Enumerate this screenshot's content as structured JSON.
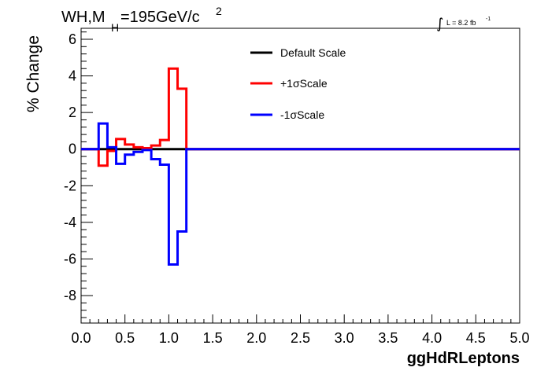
{
  "header": {
    "title_main": "WH,M",
    "title_sub": "H",
    "title_rest": "=195GeV/c",
    "title_sup": "2",
    "lumi_integral": "∫",
    "lumi_text": "L = 8.2 fb",
    "lumi_sup": "-1"
  },
  "chart_data": {
    "type": "line",
    "xlabel": "ggHdRLeptons",
    "ylabel": "% Change",
    "xlim": [
      0,
      5
    ],
    "ylim": [
      -9.5,
      6.6
    ],
    "x_ticks": [
      0,
      0.5,
      1,
      1.5,
      2,
      2.5,
      3,
      3.5,
      4,
      4.5,
      5
    ],
    "x_tick_labels": [
      "0.0",
      "0.5",
      "1.0",
      "1.5",
      "2.0",
      "2.5",
      "3.0",
      "3.5",
      "4.0",
      "4.5",
      "5.0"
    ],
    "y_ticks": [
      -8,
      -6,
      -4,
      -2,
      0,
      2,
      4,
      6
    ],
    "y_tick_labels": [
      "-8",
      "-6",
      "-4",
      "-2",
      "0",
      "2",
      "4",
      "6"
    ],
    "bin_edges": [
      0,
      0.1,
      0.2,
      0.3,
      0.4,
      0.5,
      0.6,
      0.7,
      0.8,
      0.9,
      1.0,
      1.1,
      1.2,
      1.3,
      1.4,
      1.5,
      1.6,
      1.7,
      1.8,
      1.9,
      2.0,
      2.1,
      2.2,
      2.3,
      2.4,
      2.5,
      2.6,
      2.7,
      2.8,
      2.9,
      3.0,
      3.1,
      3.2,
      3.3,
      3.4,
      3.5,
      3.6,
      3.7,
      3.8,
      3.9,
      4.0,
      4.1,
      4.2,
      4.3,
      4.4,
      4.5,
      4.6,
      4.7,
      4.8,
      4.9,
      5.0
    ],
    "series": [
      {
        "name": "Default Scale",
        "color": "#000000",
        "values": [
          0,
          0,
          0,
          0,
          0,
          0,
          0,
          0,
          0,
          0,
          0,
          0,
          0,
          0,
          0,
          0,
          0,
          0,
          0,
          0,
          0,
          0,
          0,
          0,
          0,
          0,
          0,
          0,
          0,
          0,
          0,
          0,
          0,
          0,
          0,
          0,
          0,
          0,
          0,
          0,
          0,
          0,
          0,
          0,
          0,
          0,
          0,
          0,
          0,
          0
        ]
      },
      {
        "name": "+1σScale",
        "color": "#ff0000",
        "values": [
          0,
          0,
          -0.9,
          -0.1,
          0.55,
          0.25,
          0.1,
          0.05,
          0.2,
          0.5,
          4.4,
          3.3,
          0,
          0,
          0,
          0,
          0,
          0,
          0,
          0,
          0,
          0,
          0,
          0,
          0,
          0,
          0,
          0,
          0,
          0,
          0,
          0,
          0,
          0,
          0,
          0,
          0,
          0,
          0,
          0,
          0,
          0,
          0,
          0,
          0,
          0,
          0,
          0,
          0,
          0
        ]
      },
      {
        "name": "-1σScale",
        "color": "#0000ff",
        "values": [
          0,
          0,
          1.4,
          0.1,
          -0.8,
          -0.3,
          -0.15,
          -0.05,
          -0.55,
          -0.85,
          -6.3,
          -4.5,
          0,
          0,
          0,
          0,
          0,
          0,
          0,
          0,
          0,
          0,
          0,
          0,
          0,
          0,
          0,
          0,
          0,
          0,
          0,
          0,
          0,
          0,
          0,
          0,
          0,
          0,
          0,
          0,
          0,
          0,
          0,
          0,
          0,
          0,
          0,
          0,
          0,
          0
        ]
      }
    ],
    "legend_placement": "top-center",
    "grid": false
  }
}
